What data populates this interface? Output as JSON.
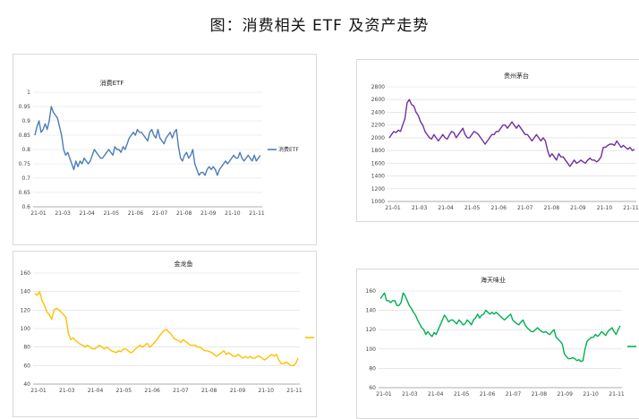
{
  "page_title": "图：消费相关 ETF 及资产走势",
  "chart_data": [
    {
      "type": "line",
      "title": "消费ETF",
      "series": [
        {
          "name": "消费ETF",
          "color": "#4a7db8",
          "values": [
            0.85,
            0.88,
            0.9,
            0.86,
            0.87,
            0.89,
            0.87,
            0.9,
            0.95,
            0.93,
            0.92,
            0.91,
            0.88,
            0.85,
            0.8,
            0.78,
            0.79,
            0.77,
            0.75,
            0.73,
            0.76,
            0.74,
            0.76,
            0.75,
            0.77,
            0.76,
            0.75,
            0.76,
            0.78,
            0.8,
            0.79,
            0.78,
            0.77,
            0.77,
            0.78,
            0.79,
            0.8,
            0.79,
            0.78,
            0.81,
            0.8,
            0.8,
            0.79,
            0.81,
            0.8,
            0.82,
            0.84,
            0.85,
            0.86,
            0.85,
            0.87,
            0.86,
            0.86,
            0.85,
            0.84,
            0.83,
            0.86,
            0.87,
            0.85,
            0.84,
            0.87,
            0.84,
            0.83,
            0.82,
            0.84,
            0.85,
            0.86,
            0.84,
            0.86,
            0.87,
            0.81,
            0.77,
            0.76,
            0.78,
            0.79,
            0.77,
            0.78,
            0.8,
            0.75,
            0.73,
            0.71,
            0.72,
            0.72,
            0.71,
            0.73,
            0.74,
            0.73,
            0.74,
            0.73,
            0.71,
            0.73,
            0.74,
            0.75,
            0.76,
            0.75,
            0.76,
            0.77,
            0.78,
            0.77,
            0.77,
            0.79,
            0.77,
            0.76,
            0.77,
            0.78,
            0.77,
            0.76,
            0.78,
            0.76,
            0.77,
            0.78
          ]
        }
      ],
      "x_ticks": [
        "21-01",
        "21-03",
        "21-04",
        "21-05",
        "21-06",
        "21-07",
        "21-08",
        "21-09",
        "21-10",
        "21-11"
      ],
      "ylim": [
        0.6,
        1.0
      ],
      "y_ticks": [
        "0.6",
        "0.65",
        "0.7",
        "0.75",
        "0.8",
        "0.85",
        "0.9",
        "0.95",
        "1"
      ],
      "legend": "right"
    },
    {
      "type": "line",
      "title": "贵州茅台",
      "series": [
        {
          "name": "贵州茅台",
          "color": "#7030a0",
          "values": [
            2000,
            2050,
            2100,
            2080,
            2120,
            2100,
            2200,
            2300,
            2550,
            2600,
            2520,
            2500,
            2400,
            2350,
            2250,
            2200,
            2100,
            2050,
            2000,
            1980,
            2050,
            2000,
            1950,
            2000,
            2050,
            2000,
            1980,
            2050,
            2100,
            2080,
            2000,
            2050,
            2100,
            2150,
            2050,
            2000,
            2000,
            2050,
            2100,
            2080,
            2050,
            2000,
            1950,
            1900,
            1950,
            2000,
            2050,
            2050,
            2100,
            2100,
            2150,
            2200,
            2200,
            2150,
            2200,
            2250,
            2200,
            2150,
            2200,
            2150,
            2100,
            2050,
            2050,
            2000,
            1950,
            2000,
            2050,
            2000,
            1950,
            2000,
            1950,
            1800,
            1700,
            1750,
            1700,
            1650,
            1750,
            1700,
            1700,
            1650,
            1600,
            1550,
            1600,
            1650,
            1600,
            1620,
            1650,
            1620,
            1600,
            1650,
            1680,
            1650,
            1650,
            1620,
            1650,
            1700,
            1850,
            1850,
            1880,
            1900,
            1900,
            1880,
            1950,
            1900,
            1850,
            1880,
            1850,
            1820,
            1850,
            1800,
            1820
          ]
        }
      ],
      "x_ticks": [
        "21-01",
        "21-03",
        "21-04",
        "21-05",
        "21-06",
        "21-07",
        "21-08",
        "21-09",
        "21-10",
        "21-11"
      ],
      "ylim": [
        1000,
        2800
      ],
      "y_ticks": [
        "1000",
        "1200",
        "1400",
        "1600",
        "1800",
        "2000",
        "2200",
        "2400",
        "2600",
        "2800"
      ],
      "legend": "none"
    },
    {
      "type": "line",
      "title": "金龙鱼",
      "series": [
        {
          "name": "金龙鱼",
          "color": "#ffc000",
          "values": [
            138,
            136,
            140,
            130,
            125,
            118,
            115,
            110,
            120,
            122,
            120,
            118,
            115,
            112,
            95,
            88,
            90,
            87,
            85,
            83,
            82,
            80,
            82,
            80,
            78,
            78,
            80,
            82,
            80,
            78,
            80,
            78,
            76,
            75,
            74,
            76,
            75,
            78,
            78,
            76,
            74,
            75,
            78,
            80,
            82,
            80,
            82,
            84,
            80,
            82,
            85,
            88,
            92,
            95,
            98,
            99,
            96,
            94,
            90,
            88,
            87,
            85,
            88,
            86,
            84,
            82,
            82,
            82,
            80,
            80,
            78,
            76,
            76,
            75,
            74,
            72,
            70,
            72,
            74,
            76,
            72,
            74,
            72,
            70,
            70,
            72,
            70,
            68,
            70,
            68,
            70,
            68,
            68,
            70,
            70,
            68,
            66,
            68,
            70,
            72,
            70,
            72,
            66,
            62,
            62,
            64,
            62,
            60,
            60,
            62,
            68
          ]
        }
      ],
      "x_ticks": [
        "21-01",
        "21-03",
        "21-04",
        "21-05",
        "21-06",
        "21-07",
        "21-08",
        "21-09",
        "21-10",
        "21-11"
      ],
      "ylim": [
        40,
        160
      ],
      "y_ticks": [
        "40",
        "60",
        "80",
        "100",
        "120",
        "140",
        "160"
      ],
      "legend": "right"
    },
    {
      "type": "line",
      "title": "海天味业",
      "series": [
        {
          "name": "海天味业",
          "color": "#00b050",
          "values": [
            152,
            155,
            158,
            150,
            150,
            148,
            150,
            150,
            145,
            145,
            148,
            158,
            155,
            150,
            145,
            142,
            138,
            135,
            130,
            126,
            122,
            120,
            115,
            118,
            115,
            113,
            117,
            115,
            120,
            125,
            130,
            135,
            132,
            128,
            130,
            130,
            128,
            126,
            130,
            128,
            125,
            126,
            130,
            128,
            125,
            130,
            132,
            136,
            132,
            135,
            136,
            140,
            138,
            136,
            138,
            136,
            138,
            136,
            134,
            132,
            130,
            132,
            134,
            136,
            130,
            128,
            126,
            125,
            128,
            130,
            125,
            122,
            120,
            118,
            118,
            120,
            122,
            120,
            118,
            117,
            118,
            116,
            115,
            118,
            120,
            112,
            110,
            108,
            105,
            95,
            92,
            90,
            90,
            91,
            90,
            88,
            89,
            87,
            88,
            100,
            108,
            110,
            112,
            112,
            115,
            113,
            115,
            118,
            116,
            114,
            118,
            120,
            122,
            118,
            115,
            120,
            124
          ]
        }
      ],
      "x_ticks": [
        "21-01",
        "21-03",
        "21-04",
        "21-05",
        "21-06",
        "21-07",
        "21-08",
        "21-09",
        "21-10",
        "21-11"
      ],
      "ylim": [
        60,
        160
      ],
      "y_ticks": [
        "60",
        "80",
        "100",
        "120",
        "140",
        "160"
      ],
      "legend": "right-unlabeled"
    }
  ]
}
